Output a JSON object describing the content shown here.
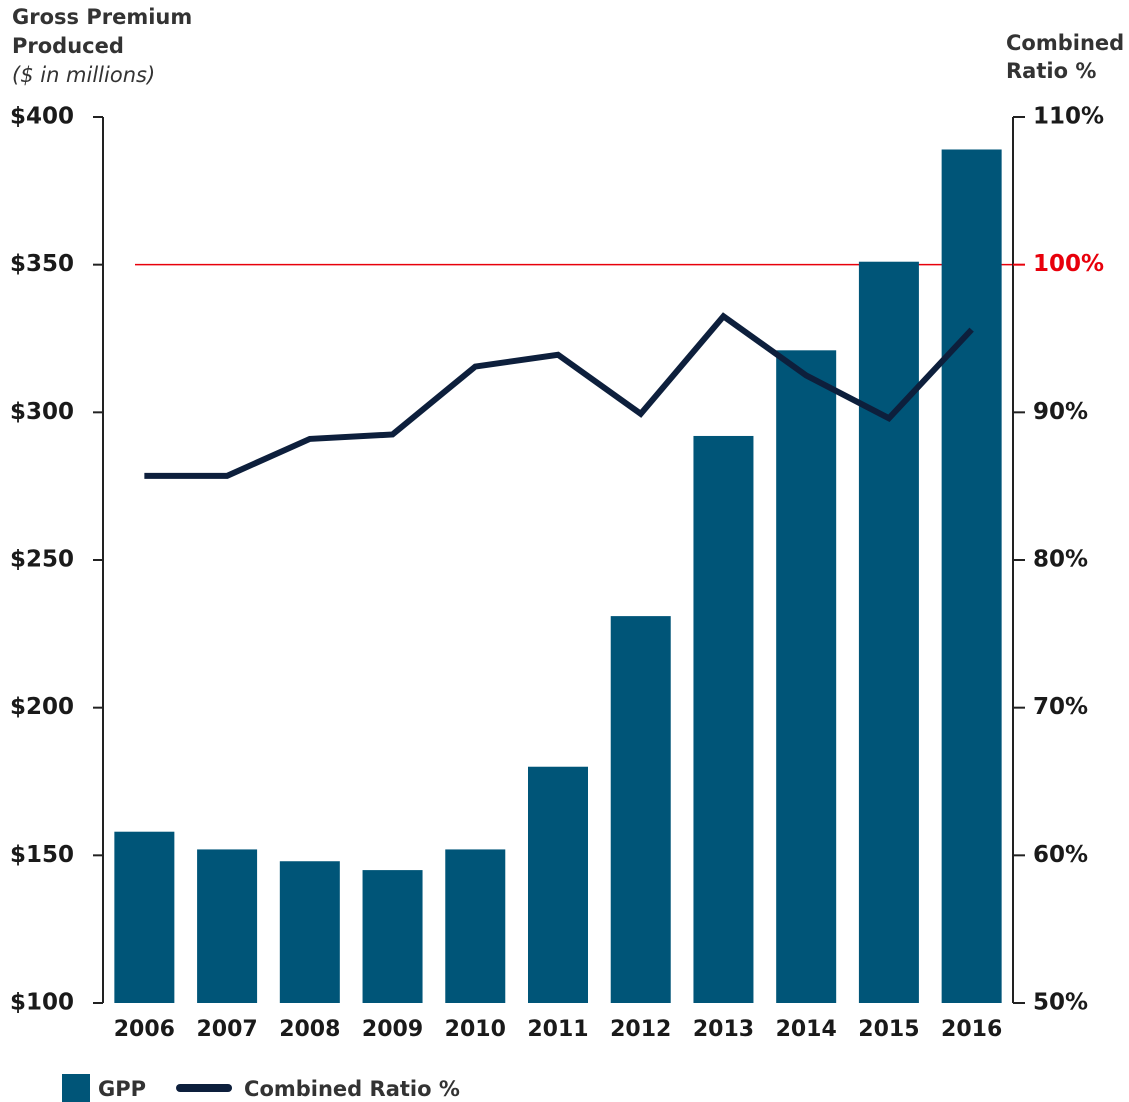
{
  "chart_data": {
    "type": "bar",
    "ylabel": [
      "Gross Premium",
      "Produced"
    ],
    "ylabel_sub": "($ in millions)",
    "y2label": [
      "Combined",
      "Ratio %"
    ],
    "categories": [
      "2006",
      "2007",
      "2008",
      "2009",
      "2010",
      "2011",
      "2012",
      "2013",
      "2014",
      "2015",
      "2016"
    ],
    "series": [
      {
        "name": "GPP",
        "type": "bar",
        "color": "#005578",
        "values": [
          158,
          152,
          148,
          145,
          152,
          180,
          231,
          292,
          321,
          351,
          389
        ]
      },
      {
        "name": "Combined Ratio %",
        "type": "line",
        "axis": "y2",
        "color": "#0d1f3c",
        "values": [
          85.7,
          85.7,
          88.2,
          88.5,
          93.1,
          93.9,
          89.9,
          96.5,
          92.5,
          89.6,
          95.6
        ]
      }
    ],
    "ylim": [
      100,
      400
    ],
    "yticks": [
      {
        "value": 100,
        "label": "$100"
      },
      {
        "value": 150,
        "label": "$150"
      },
      {
        "value": 200,
        "label": "$200"
      },
      {
        "value": 250,
        "label": "$250"
      },
      {
        "value": 300,
        "label": "$300"
      },
      {
        "value": 350,
        "label": "$350"
      },
      {
        "value": 400,
        "label": "$400"
      }
    ],
    "y2lim": [
      50,
      110
    ],
    "y2ticks": [
      {
        "value": 50,
        "label": "50%"
      },
      {
        "value": 60,
        "label": "60%"
      },
      {
        "value": 70,
        "label": "70%"
      },
      {
        "value": 80,
        "label": "80%"
      },
      {
        "value": 90,
        "label": "90%"
      },
      {
        "value": 100,
        "label": "100%"
      },
      {
        "value": 110,
        "label": "110%"
      }
    ],
    "reference_line": {
      "value": 100,
      "axis": "y2",
      "color": "#e8000b"
    },
    "grid": false
  }
}
